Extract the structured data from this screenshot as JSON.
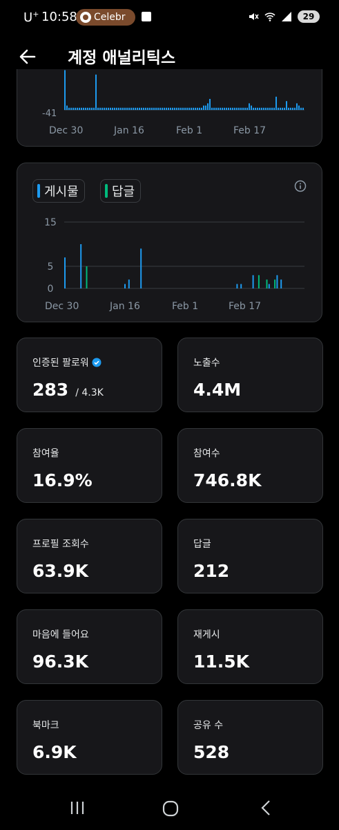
{
  "status_bar": {
    "carrier": "U",
    "carrier_sup": "+",
    "time": "10:58",
    "notification_pill": "Celebr",
    "battery": "29"
  },
  "header": {
    "title": "계정 애널리틱스"
  },
  "chart_data": [
    {
      "type": "bar",
      "title": "",
      "y_tick_labels": [
        "-41"
      ],
      "x_tick_labels": [
        "Dec 30",
        "Jan 16",
        "Feb 1",
        "Feb 17"
      ],
      "series": [
        {
          "values": [
            18,
            2,
            1,
            1,
            1,
            1,
            1,
            1,
            1,
            1,
            1,
            1,
            1,
            1,
            1,
            16,
            1,
            1,
            1,
            1,
            1,
            1,
            1,
            1,
            1,
            1,
            1,
            1,
            1,
            1,
            1,
            1,
            1,
            1,
            1,
            1,
            1,
            1,
            1,
            1,
            1,
            1,
            1,
            1,
            1,
            1,
            1,
            1,
            1,
            1,
            1,
            1,
            1,
            1,
            1,
            1,
            1,
            1,
            1,
            1,
            1,
            1,
            1,
            1,
            1,
            1,
            1,
            2,
            2,
            3,
            5,
            1,
            1,
            1,
            1,
            1,
            1,
            1,
            1,
            1,
            1,
            1,
            1,
            1,
            1,
            1,
            1,
            1,
            1,
            3,
            2,
            1,
            1,
            1,
            1,
            1,
            1,
            1,
            1,
            1,
            1,
            1,
            6,
            1,
            1,
            1,
            1,
            4,
            1,
            1,
            1,
            1,
            3,
            2,
            1,
            1
          ],
          "color": "#1d9bf0"
        }
      ]
    },
    {
      "type": "bar",
      "x_tick_labels": [
        "Dec 30",
        "Jan 16",
        "Feb 1",
        "Feb 17"
      ],
      "y_ticks": [
        0,
        5,
        15
      ],
      "ylim": [
        0,
        15
      ],
      "legend": [
        "게시물",
        "답글"
      ],
      "categories_count": 60,
      "series": [
        {
          "name": "게시물",
          "color": "#1d9bf0",
          "values": [
            7,
            0,
            0,
            0,
            10,
            0,
            0,
            0,
            0,
            0,
            0,
            0,
            0,
            0,
            0,
            1,
            2,
            0,
            0,
            9,
            0,
            0,
            0,
            0,
            0,
            0,
            0,
            0,
            0,
            0,
            0,
            0,
            0,
            0,
            0,
            0,
            0,
            0,
            0,
            0,
            0,
            0,
            0,
            1,
            1,
            0,
            0,
            3,
            0,
            0,
            0,
            1,
            0,
            3,
            2,
            0,
            0,
            0,
            0,
            0
          ]
        },
        {
          "name": "답글",
          "color": "#00ba7c",
          "values": [
            0,
            0,
            0,
            0,
            0,
            5,
            0,
            0,
            0,
            0,
            0,
            0,
            0,
            0,
            0,
            0,
            0,
            0,
            0,
            0,
            0,
            0,
            0,
            0,
            0,
            0,
            0,
            0,
            0,
            0,
            0,
            0,
            0,
            0,
            0,
            0,
            0,
            0,
            0,
            0,
            0,
            0,
            0,
            0,
            0,
            0,
            0,
            0,
            3,
            0,
            2,
            0,
            2,
            0,
            0,
            0,
            0,
            0,
            0,
            0
          ]
        }
      ]
    }
  ],
  "stats": [
    {
      "label": "인증된 팔로워",
      "value": "283",
      "sub": "/ 4.3K",
      "verified": true
    },
    {
      "label": "노출수",
      "value": "4.4M"
    },
    {
      "label": "참여율",
      "value": "16.9%"
    },
    {
      "label": "참여수",
      "value": "746.8K"
    },
    {
      "label": "프로필 조회수",
      "value": "63.9K"
    },
    {
      "label": "답글",
      "value": "212"
    },
    {
      "label": "마음에 들어요",
      "value": "96.3K"
    },
    {
      "label": "재게시",
      "value": "11.5K"
    },
    {
      "label": "북마크",
      "value": "6.9K"
    },
    {
      "label": "공유 수",
      "value": "528"
    }
  ],
  "colors": {
    "accent": "#1d9bf0",
    "reply": "#00ba7c",
    "card_bg": "#17171a",
    "border": "#333639"
  },
  "icons": [
    "back-arrow-icon",
    "info-icon",
    "verified-badge-icon",
    "recent-apps-icon",
    "home-icon",
    "nav-back-icon"
  ]
}
